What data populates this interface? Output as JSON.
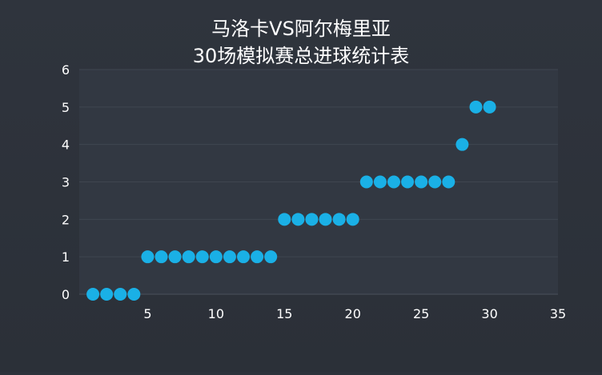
{
  "chart_data": {
    "type": "scatter",
    "title_lines": [
      "马洛卡VS阿尔梅里亚",
      "30场模拟赛总进球统计表"
    ],
    "xlim": [
      0,
      35
    ],
    "ylim": [
      0,
      6
    ],
    "x_ticks": [
      5,
      10,
      15,
      20,
      25,
      30,
      35
    ],
    "y_ticks": [
      0,
      1,
      2,
      3,
      4,
      5,
      6
    ],
    "grid": true,
    "colors": {
      "point": "#1ab0e6",
      "background": "#2d323b"
    },
    "series": [
      {
        "x": [
          1,
          2,
          3,
          4,
          5,
          6,
          7,
          8,
          9,
          10,
          11,
          12,
          13,
          14,
          15,
          16,
          17,
          18,
          19,
          20,
          21,
          22,
          23,
          24,
          25,
          26,
          27,
          28,
          29,
          30
        ],
        "y": [
          0,
          0,
          0,
          0,
          1,
          1,
          1,
          1,
          1,
          1,
          1,
          1,
          1,
          1,
          2,
          2,
          2,
          2,
          2,
          2,
          3,
          3,
          3,
          3,
          3,
          3,
          3,
          4,
          5,
          5
        ]
      }
    ]
  }
}
